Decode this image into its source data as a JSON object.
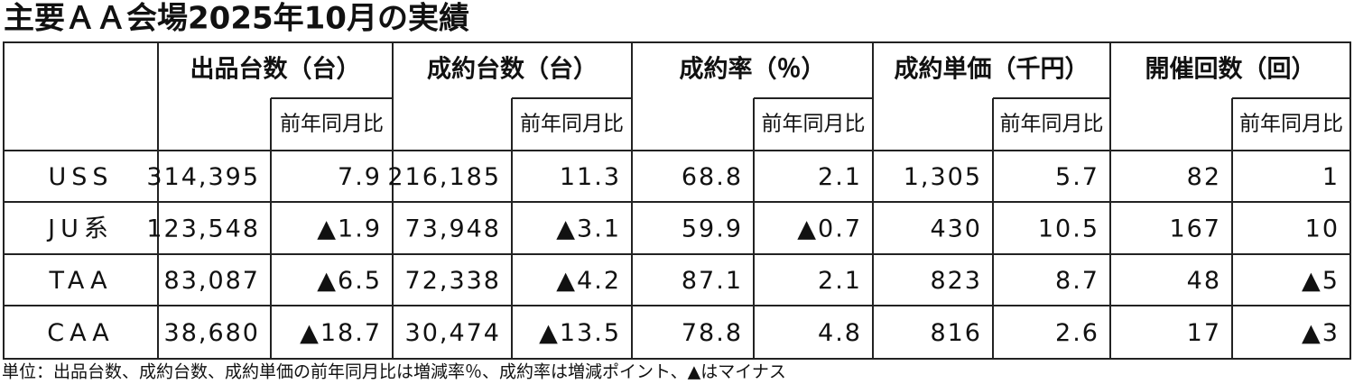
{
  "header": {
    "title": "主要ＡＡ会場2025年10月の実績"
  },
  "table": {
    "groups": [
      "出品台数（台）",
      "成約台数（台）",
      "成約率（％）",
      "成約単価（千円）",
      "開催回数（回）"
    ],
    "sub_headers": [
      "前年同月比",
      "前年同月比",
      "前年同月比",
      "前年同月比",
      "前年同月比"
    ],
    "rows": [
      [
        "USS",
        "314,395",
        "7.9",
        "216,185",
        "11.3",
        "68.8",
        "2.1",
        "1,305",
        "5.7",
        "82",
        "1"
      ],
      [
        "JU系",
        "123,548",
        "▲1.9",
        "73,948",
        "▲3.1",
        "59.9",
        "▲0.7",
        "430",
        "10.5",
        "167",
        "10"
      ],
      [
        "TAA",
        "83,087",
        "▲6.5",
        "72,338",
        "▲4.2",
        "87.1",
        "2.1",
        "823",
        "8.7",
        "48",
        "▲5"
      ],
      [
        "CAA",
        "38,680",
        "▲18.7",
        "30,474",
        "▲13.5",
        "78.8",
        "4.8",
        "816",
        "2.6",
        "17",
        "▲3"
      ]
    ]
  },
  "note": "単位：出品台数、成約台数、成約単価の前年同月比は増減率％、成約率は増減ポイント、▲はマイナス"
}
